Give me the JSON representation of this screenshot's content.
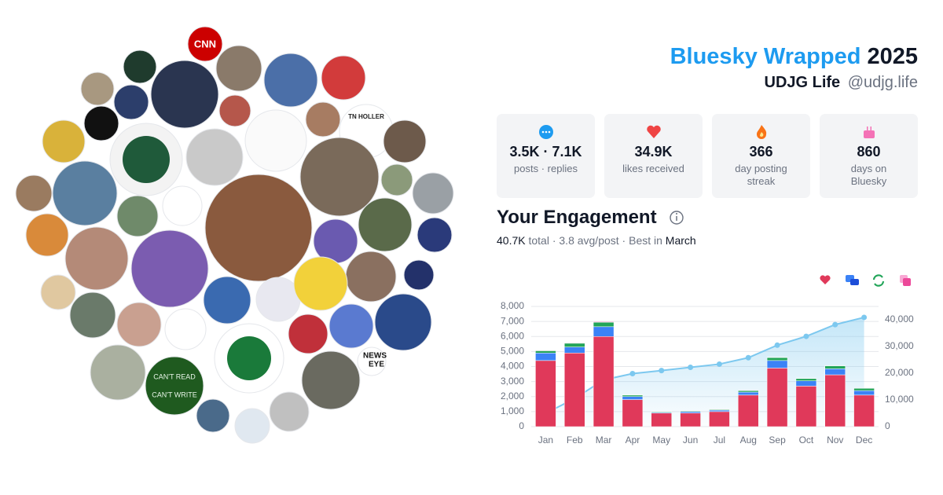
{
  "header": {
    "title": "Bluesky Wrapped",
    "year": "2025",
    "name": "UDJG Life",
    "handle": "@udjg.life"
  },
  "stats": [
    {
      "value": "3.5K · 7.1K",
      "label": "posts · replies"
    },
    {
      "value": "34.9K",
      "label": "likes received"
    },
    {
      "value": "366",
      "label": "day posting streak"
    },
    {
      "value": "860",
      "label": "days on Bluesky"
    }
  ],
  "engagement": {
    "title": "Your Engagement",
    "total": "40.7K",
    "summary": "total · 3.8 avg/post · Best in",
    "best": "March"
  },
  "avatar_texts": [
    "CNN",
    "TN HOLLER",
    "NEWS",
    "EYE",
    "CAN'T READ",
    "CAN'T WRITE"
  ],
  "chart_data": {
    "type": "bar",
    "stacked": true,
    "categories": [
      "Jan",
      "Feb",
      "Mar",
      "Apr",
      "May",
      "Jun",
      "Jul",
      "Aug",
      "Sep",
      "Oct",
      "Nov",
      "Dec"
    ],
    "series": [
      {
        "color": "#e0395a",
        "values": [
          4400,
          4900,
          6000,
          1800,
          900,
          900,
          1000,
          2100,
          3900,
          2700,
          3450,
          2100
        ]
      },
      {
        "color": "#3b82f6",
        "values": [
          500,
          400,
          650,
          200,
          50,
          100,
          100,
          200,
          500,
          350,
          400,
          300
        ]
      },
      {
        "color": "#22a559",
        "values": [
          150,
          250,
          300,
          100,
          50,
          50,
          50,
          100,
          200,
          150,
          200,
          150
        ]
      },
      {
        "color": "#ec4899",
        "values": [
          30,
          30,
          40,
          10,
          5,
          5,
          5,
          10,
          20,
          15,
          20,
          15
        ]
      },
      {
        "type": "line",
        "axis": "y2",
        "color": "#7cc8ef",
        "values": [
          5000,
          10500,
          17500,
          19850,
          21000,
          22200,
          23400,
          25800,
          30500,
          33800,
          38200,
          40900
        ]
      }
    ],
    "ylim": [
      0,
      8000
    ],
    "yticks": [
      0,
      {
        "value": 1000,
        "label": "1,000"
      },
      {
        "value": 2000,
        "label": "2,000"
      },
      {
        "value": 3000,
        "label": "3,000"
      },
      {
        "value": 4000,
        "label": "4,000"
      },
      {
        "value": 5000,
        "label": "5,000"
      },
      {
        "value": 6000,
        "label": "6,000"
      },
      {
        "value": 7000,
        "label": "7,000"
      },
      {
        "value": 8000,
        "label": "8,000"
      }
    ],
    "y2lim": [
      0,
      45000
    ],
    "y2ticks": [
      0,
      {
        "value": 10000,
        "label": "10,000"
      },
      {
        "value": 20000,
        "label": "20,000"
      },
      {
        "value": 30000,
        "label": "30,000"
      },
      {
        "value": 40000,
        "label": "40,000"
      }
    ],
    "grid": true
  }
}
